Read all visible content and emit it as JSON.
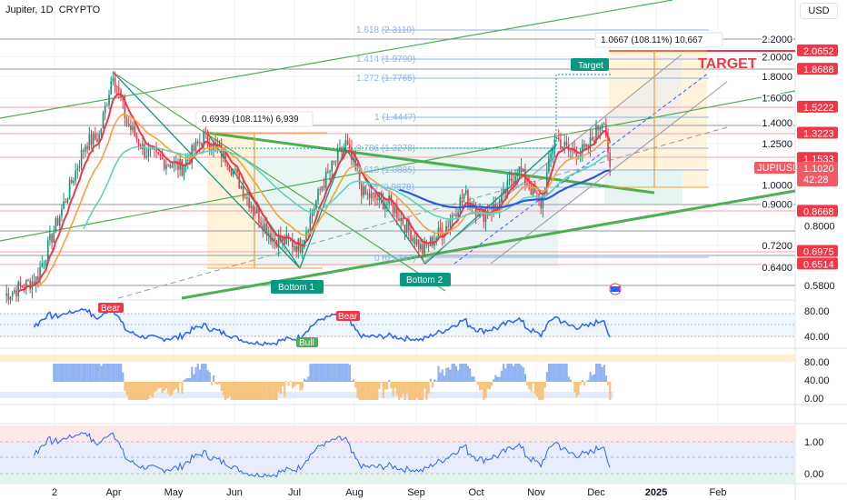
{
  "header": {
    "title": "Jupiter, 1D, CRYPTO",
    "currency_button": "USD"
  },
  "chart_data": {
    "type": "candlestick",
    "symbol": "JUPIUSD",
    "interval": "1D",
    "scale": "log",
    "close_path_day_price": [
      [
        0,
        0.55
      ],
      [
        16,
        0.6
      ],
      [
        30,
        0.9
      ],
      [
        41,
        1.25
      ],
      [
        48,
        1.3
      ],
      [
        55,
        1.85
      ],
      [
        62,
        1.4
      ],
      [
        71,
        1.2
      ],
      [
        78,
        1.15
      ],
      [
        90,
        1.1
      ],
      [
        101,
        1.3
      ],
      [
        113,
        1.15
      ],
      [
        122,
        0.95
      ],
      [
        136,
        0.75
      ],
      [
        150,
        0.72
      ],
      [
        161,
        1.0
      ],
      [
        173,
        1.25
      ],
      [
        182,
        0.95
      ],
      [
        196,
        0.9
      ],
      [
        212,
        0.7
      ],
      [
        224,
        0.8
      ],
      [
        233,
        0.95
      ],
      [
        242,
        0.85
      ],
      [
        251,
        0.9
      ],
      [
        260,
        1.1
      ],
      [
        272,
        0.9
      ],
      [
        279,
        1.3
      ],
      [
        286,
        1.2
      ],
      [
        295,
        1.2
      ],
      [
        304,
        1.45
      ],
      [
        307,
        1.102
      ]
    ],
    "price_axis_ticks": [
      "2.2000",
      "2.0000",
      "1.8000",
      "1.6000",
      "1.4000",
      "1.2500",
      "1.0000",
      "0.9000",
      "0.8000",
      "0.7200",
      "0.6400",
      "0.5800"
    ],
    "price_levels": [
      {
        "label": "2.0652",
        "color": "#f23645"
      },
      {
        "label": "1.8688",
        "color": "#f23645"
      },
      {
        "label": "1.5222",
        "color": "#f23645"
      },
      {
        "label": "1.3223",
        "color": "#f23645"
      },
      {
        "label": "1.1533",
        "color": "#f23645"
      },
      {
        "label": "0.8668",
        "color": "#f23645"
      },
      {
        "label": "0.6975",
        "color": "#f23645"
      },
      {
        "label": "0.6514",
        "color": "#f23645"
      }
    ],
    "last_price": {
      "symbol": "JUPIUSD",
      "price": "1.1020",
      "countdown": "42:28"
    },
    "time_axis": [
      "2",
      "Apr",
      "May",
      "Jun",
      "Jul",
      "Aug",
      "Sep",
      "Oct",
      "Nov",
      "Dec",
      "2025",
      "Feb"
    ],
    "fib_levels": [
      "1.618 (2.3110)",
      "1.414 (1.9790)",
      "1.272 (1.7765)",
      "1 (1.4447)",
      "0.786 (1.3278)",
      "0.618 (1.0885)",
      "0.5 (0.9878)",
      "0 (0.6747)"
    ],
    "annotations": {
      "measure_left": "0.6939 (108.11%) 6,939",
      "measure_right": "1.0667 (108.11%) 10,667",
      "target_text": "TARGET",
      "target_tag": "Target",
      "bottom1": "Bottom 1",
      "bottom2": "Bottom 2"
    },
    "rsi_panel": {
      "ticks": [
        "80.00",
        "40.00"
      ],
      "bear1": "Bear",
      "bear2": "Bear",
      "bull": "Bull"
    },
    "osc_panel": {
      "ticks": [
        "80.00",
        "40.00",
        "0.00"
      ]
    },
    "stoch_panel": {
      "ticks": [
        "1.00",
        "0.00"
      ]
    },
    "colors": {
      "up": "#089981",
      "down": "#f23645",
      "ema_fast": "#f23645",
      "ema_mid": "#f7a13a",
      "ema_slow": "#5cd3c0",
      "ema_long": "#2a5bd7",
      "rsi": "#2962ff"
    }
  }
}
